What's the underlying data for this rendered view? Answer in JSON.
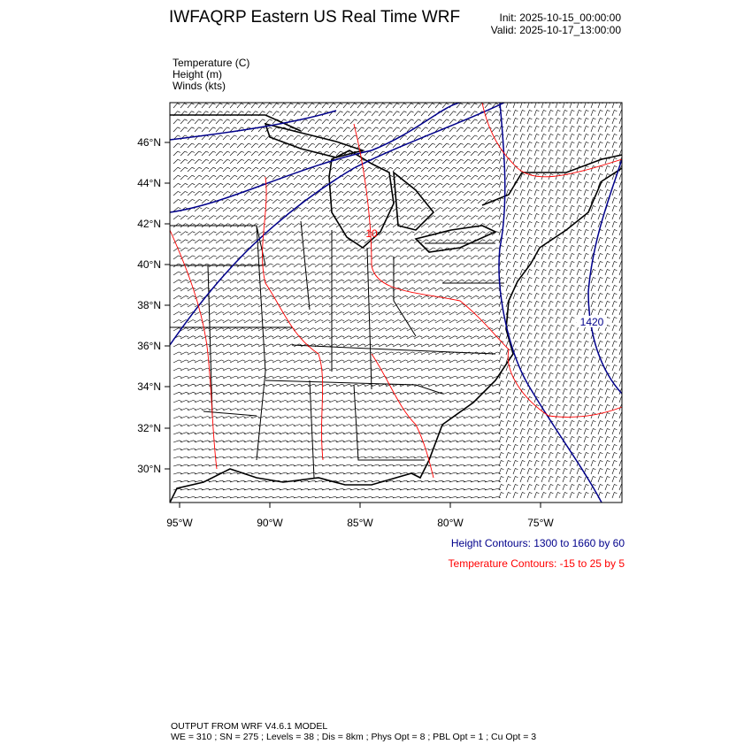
{
  "header": {
    "title": "IWFAQRP Eastern US Real Time WRF",
    "init": "Init: 2025-10-15_00:00:00",
    "valid": "Valid: 2025-10-17_13:00:00"
  },
  "fields": [
    {
      "label": "Temperature   (C)"
    },
    {
      "label": "Height   (m)"
    },
    {
      "label": "Winds   (kts)"
    }
  ],
  "map": {
    "lat_ticks": [
      "46°N",
      "44°N",
      "42°N",
      "40°N",
      "38°N",
      "36°N",
      "34°N",
      "32°N",
      "30°N"
    ],
    "lon_ticks": [
      "95°W",
      "90°W",
      "85°W",
      "80°W",
      "75°W"
    ],
    "contour_labels": {
      "temperature": "10",
      "height": "1420"
    },
    "colors": {
      "height": "#00008b",
      "temperature": "#ff0000",
      "map_lines": "#000000"
    }
  },
  "legend": {
    "height_contours": "Height Contours: 1300 to 1660 by 60",
    "temperature_contours": "Temperature Contours: -15 to 25 by 5"
  },
  "footer": {
    "line1": "OUTPUT FROM WRF V4.6.1 MODEL",
    "line2": "WE = 310 ; SN = 275 ; Levels = 38 ; Dis = 8km ; Phys Opt = 8 ; PBL Opt = 1 ; Cu Opt = 3"
  }
}
